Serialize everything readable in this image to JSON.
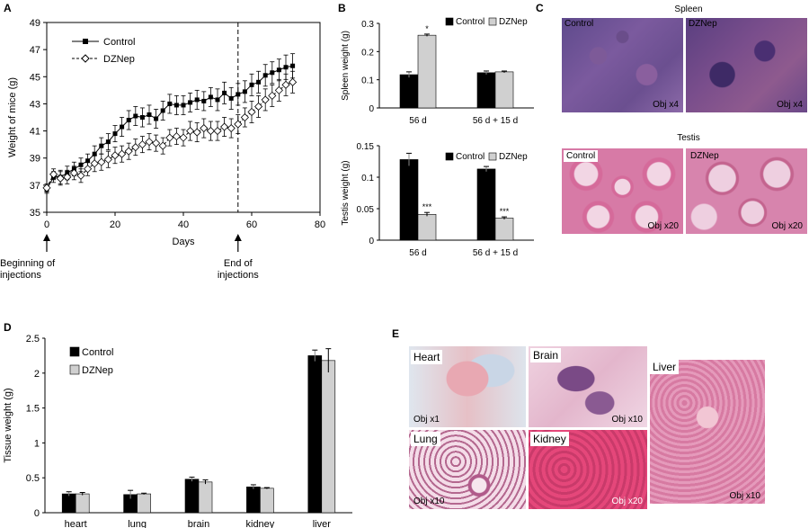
{
  "panel_labels": {
    "A": "A",
    "B": "B",
    "C": "C",
    "D": "D",
    "E": "E"
  },
  "colors": {
    "control": "#000000",
    "dznep": "#d0d0d0",
    "axis": "#000000"
  },
  "chart_data": [
    {
      "id": "A",
      "type": "line",
      "xlabel": "Days",
      "ylabel": "Weight of mice (g)",
      "xlim": [
        0,
        80
      ],
      "ylim": [
        35,
        49
      ],
      "xticks": [
        "0",
        "20",
        "40",
        "60",
        "80"
      ],
      "yticks": [
        "35",
        "37",
        "39",
        "41",
        "43",
        "45",
        "47",
        "49"
      ],
      "marker_line_x": 56,
      "legend_placement": "top-left",
      "annotations": [
        {
          "text": "Beginning of injections",
          "lines": [
            "Beginning of",
            "injections"
          ],
          "x": 0
        },
        {
          "text": "End of injections",
          "lines": [
            "End of",
            "injections"
          ],
          "x": 56
        }
      ],
      "series": [
        {
          "name": "Control",
          "x": [
            0,
            2,
            4,
            6,
            8,
            10,
            12,
            14,
            16,
            18,
            20,
            22,
            24,
            26,
            28,
            30,
            32,
            34,
            36,
            38,
            40,
            42,
            44,
            46,
            48,
            50,
            52,
            54,
            56,
            58,
            60,
            62,
            64,
            66,
            68,
            70,
            72
          ],
          "y": [
            36.7,
            37.6,
            37.6,
            37.9,
            38.2,
            38.5,
            38.8,
            39.3,
            39.9,
            40.2,
            40.8,
            41.3,
            41.8,
            42.1,
            42.0,
            42.2,
            41.9,
            42.5,
            43.0,
            42.9,
            42.9,
            43.1,
            43.3,
            43.2,
            43.5,
            43.3,
            43.8,
            43.4,
            43.7,
            43.9,
            44.4,
            44.6,
            45.1,
            45.3,
            45.5,
            45.7,
            45.8
          ],
          "err": [
            0.3,
            0.4,
            0.5,
            0.5,
            0.5,
            0.5,
            0.5,
            0.6,
            0.6,
            0.6,
            0.6,
            0.7,
            0.7,
            0.7,
            0.7,
            0.7,
            0.7,
            0.7,
            0.7,
            0.7,
            0.7,
            0.7,
            0.7,
            0.7,
            0.7,
            0.8,
            0.8,
            0.8,
            0.8,
            0.8,
            0.8,
            0.8,
            0.8,
            0.8,
            0.8,
            0.9,
            0.9
          ]
        },
        {
          "name": "DZNep",
          "x": [
            0,
            2,
            4,
            6,
            8,
            10,
            12,
            14,
            16,
            18,
            20,
            22,
            24,
            26,
            28,
            30,
            32,
            34,
            36,
            38,
            40,
            42,
            44,
            46,
            48,
            50,
            52,
            54,
            56,
            58,
            60,
            62,
            64,
            66,
            68,
            70,
            72
          ],
          "y": [
            36.8,
            37.8,
            37.5,
            37.6,
            37.9,
            37.7,
            38.2,
            38.6,
            38.7,
            38.9,
            39.2,
            39.3,
            39.5,
            39.8,
            40.0,
            40.2,
            40.1,
            39.9,
            40.5,
            40.6,
            40.5,
            41.0,
            40.9,
            41.2,
            41.0,
            41.0,
            41.3,
            41.2,
            41.5,
            42.0,
            42.4,
            42.8,
            43.3,
            43.6,
            44.0,
            44.4,
            44.6
          ],
          "err": [
            0.3,
            0.4,
            0.5,
            0.5,
            0.5,
            0.5,
            0.5,
            0.6,
            0.6,
            0.6,
            0.6,
            0.6,
            0.6,
            0.6,
            0.6,
            0.6,
            0.6,
            0.6,
            0.6,
            0.6,
            0.6,
            0.7,
            0.7,
            0.7,
            0.7,
            0.7,
            0.7,
            0.7,
            0.7,
            0.7,
            0.8,
            0.8,
            0.8,
            0.8,
            0.8,
            0.8,
            0.8
          ]
        }
      ]
    },
    {
      "id": "B1",
      "type": "bar",
      "ylabel": "Spleen weight (g)",
      "categories": [
        "56 d",
        "56 d + 15 d"
      ],
      "ylim": [
        0,
        0.3
      ],
      "yticks": [
        "0",
        "0.1",
        "0.2",
        "0.3"
      ],
      "legend_placement": "top-right",
      "series": [
        {
          "name": "Control",
          "values": [
            0.118,
            0.125
          ],
          "err": [
            0.01,
            0.006
          ]
        },
        {
          "name": "DZNep",
          "values": [
            0.258,
            0.128
          ],
          "err": [
            0.004,
            0.003
          ]
        }
      ],
      "significance": [
        "*",
        ""
      ]
    },
    {
      "id": "B2",
      "type": "bar",
      "ylabel": "Testis weight (g)",
      "categories": [
        "56 d",
        "56 d + 15 d"
      ],
      "ylim": [
        0,
        0.15
      ],
      "yticks": [
        "0",
        "0.05",
        "0.1",
        "0.15"
      ],
      "legend_placement": "top-right",
      "series": [
        {
          "name": "Control",
          "values": [
            0.128,
            0.113
          ],
          "err": [
            0.01,
            0.004
          ]
        },
        {
          "name": "DZNep",
          "values": [
            0.041,
            0.035
          ],
          "err": [
            0.003,
            0.002
          ]
        }
      ],
      "significance": [
        "***",
        "***"
      ]
    },
    {
      "id": "D",
      "type": "bar",
      "ylabel": "Tissue weight (g)",
      "categories": [
        "heart",
        "lung",
        "brain",
        "kidney",
        "liver"
      ],
      "ylim": [
        0,
        2.5
      ],
      "yticks": [
        "0",
        "0.5",
        "1",
        "1.5",
        "2",
        "2.5"
      ],
      "legend_placement": "top-left",
      "series": [
        {
          "name": "Control",
          "values": [
            0.27,
            0.26,
            0.48,
            0.37,
            2.25
          ],
          "err": [
            0.03,
            0.06,
            0.03,
            0.03,
            0.08
          ]
        },
        {
          "name": "DZNep",
          "values": [
            0.27,
            0.27,
            0.44,
            0.35,
            2.18
          ],
          "err": [
            0.02,
            0.01,
            0.03,
            0.01,
            0.17
          ]
        }
      ]
    }
  ],
  "panel_c": {
    "spleen_title": "Spleen",
    "testis_title": "Testis",
    "images": [
      {
        "label": "Control",
        "obj": ""
      },
      {
        "label": "DZNep",
        "obj": "Obj x4"
      },
      {
        "label": "Control",
        "obj": "Obj x20"
      },
      {
        "label": "DZNep",
        "obj": "Obj x20"
      }
    ],
    "spleen_left_obj": "Obj x4"
  },
  "panel_e": {
    "images": [
      {
        "label": "Heart",
        "obj": "Obj x1"
      },
      {
        "label": "Brain",
        "obj": "Obj x10"
      },
      {
        "label": "Liver",
        "obj": "Obj x10"
      },
      {
        "label": "Lung",
        "obj": "Obj x10"
      },
      {
        "label": "Kidney",
        "obj": "Obj x20"
      }
    ]
  }
}
